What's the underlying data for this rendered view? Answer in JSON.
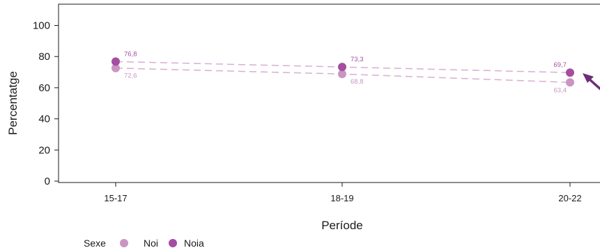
{
  "chart_data": {
    "type": "line",
    "xlabel": "Període",
    "ylabel": "Percentatge",
    "categories": [
      "15-17",
      "18-19",
      "20-22"
    ],
    "yticks": [
      0,
      20,
      40,
      60,
      80,
      100
    ],
    "ylim": [
      0,
      113
    ],
    "grid": false,
    "legend": {
      "title": "Sexe",
      "position": "bottom-left"
    },
    "series": [
      {
        "name": "Noi",
        "color": "#c995c1",
        "values": [
          72.6,
          68.8,
          63.4
        ],
        "labels": [
          "72,6",
          "68,8",
          "63,4"
        ]
      },
      {
        "name": "Noia",
        "color": "#a44ea0",
        "values": [
          76.8,
          73.3,
          69.7
        ],
        "labels": [
          "76,8",
          "73,3",
          "69,7"
        ]
      }
    ],
    "annotation": {
      "shape": "arrow",
      "color": "#6e2e78"
    }
  }
}
